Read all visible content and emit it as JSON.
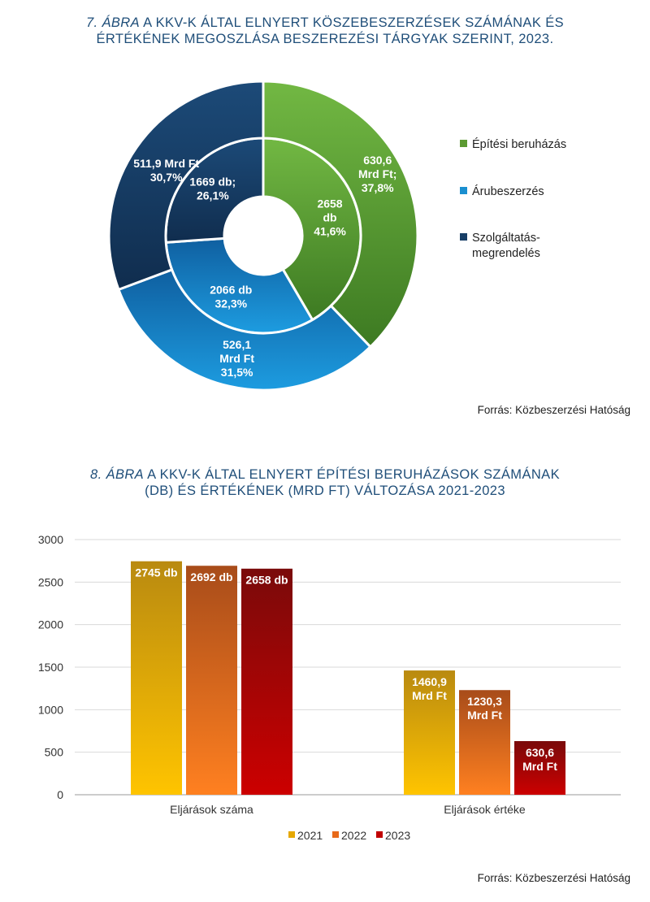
{
  "chart1": {
    "title_num": "7. ÁBRA",
    "title_rest": " A KKV-K ÁLTAL ELNYERT KÖSZEBESZERZÉSEK SZÁMÁNAK ÉS",
    "title_line2": "ÉRTÉKÉNEK MEGOSZLÁSA BESZEREZÉSI TÁRGYAK SZERINT, 2023.",
    "source": "Forrás: Közbeszerzési Hatóság"
  },
  "chart2": {
    "title_num": "8. ÁBRA",
    "title_rest": " A KKV-K ÁLTAL ELNYERT ÉPÍTÉSI BERUHÁZÁSOK SZÁMÁNAK",
    "title_line2": "(DB) ÉS ÉRTÉKÉNEK (MRD FT) VÁLTOZÁSA 2021-2023",
    "source": "Forrás: Közbeszerzési Hatóság"
  },
  "chart_data": [
    {
      "type": "pie",
      "variant": "double-donut",
      "legend_position": "right",
      "categories": [
        "Építési beruházás",
        "Árubeszerzés",
        "Szolgáltatás-megrendelés"
      ],
      "legend_lines": [
        [
          "Építési beruházás"
        ],
        [
          "Árubeszerzés"
        ],
        [
          "Szolgáltatás-",
          "megrendelés"
        ]
      ],
      "colors": [
        "#5c9a32",
        "#1a8fd0",
        "#173e66"
      ],
      "series": [
        {
          "ring": "inner",
          "values": [
            2658,
            2066,
            1669
          ],
          "percents": [
            41.6,
            32.3,
            26.1
          ],
          "labels": [
            [
              "2658",
              "db",
              "41,6%"
            ],
            [
              "2066 db",
              "32,3%"
            ],
            [
              "1669 db;",
              "26,1%"
            ]
          ]
        },
        {
          "ring": "outer",
          "values": [
            630.6,
            526.1,
            511.9
          ],
          "percents": [
            37.8,
            31.5,
            30.7
          ],
          "labels": [
            [
              "630,6",
              "Mrd Ft;",
              "37,8%"
            ],
            [
              "526,1",
              "Mrd Ft",
              "31,5%"
            ],
            [
              "511,9 Mrd Ft",
              "30,7%"
            ]
          ]
        }
      ]
    },
    {
      "type": "bar",
      "categories": [
        "Eljárások száma",
        "Eljárások értéke"
      ],
      "ylim": [
        0,
        3000
      ],
      "yticks": [
        0,
        500,
        1000,
        1500,
        2000,
        2500,
        3000
      ],
      "grid": true,
      "legend_position": "bottom",
      "series": [
        {
          "name": "2021",
          "values": [
            2745,
            1460.9
          ],
          "labels": [
            [
              "2745 db"
            ],
            [
              "1460,9",
              "Mrd Ft"
            ]
          ],
          "color_top": "#b98a10",
          "color_bottom": "#ffc400"
        },
        {
          "name": "2022",
          "values": [
            2692,
            1230.3
          ],
          "labels": [
            [
              "2692 db"
            ],
            [
              "1230,3",
              "Mrd Ft"
            ]
          ],
          "color_top": "#a84c1a",
          "color_bottom": "#ff8020"
        },
        {
          "name": "2023",
          "values": [
            2658,
            630.6
          ],
          "labels": [
            [
              "2658 db"
            ],
            [
              "630,6",
              "Mrd Ft"
            ]
          ],
          "color_top": "#7a0a0a",
          "color_bottom": "#cc0000"
        }
      ]
    }
  ]
}
